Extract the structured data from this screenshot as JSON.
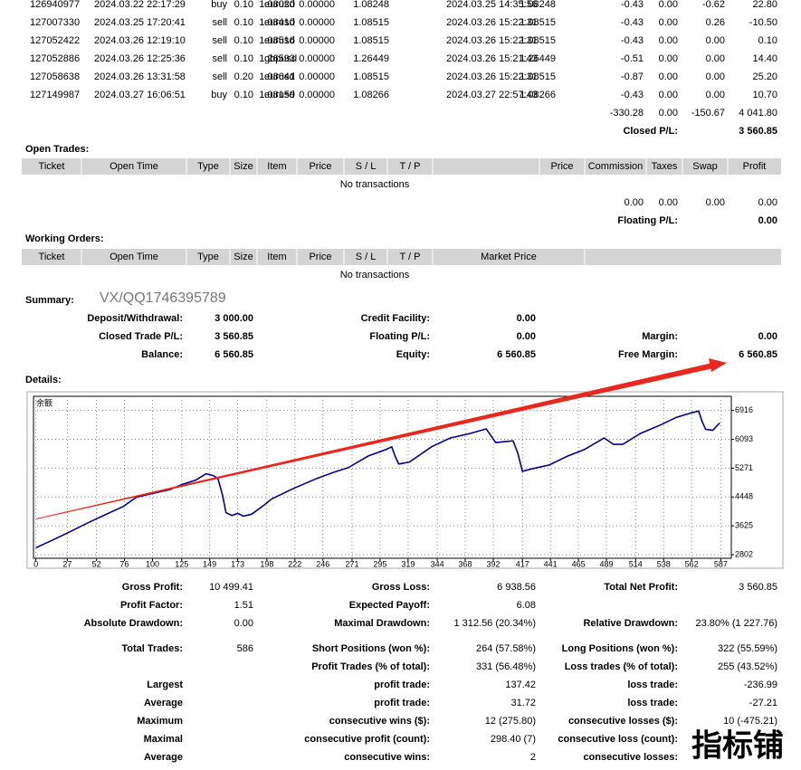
{
  "closed_trades": {
    "rows": [
      [
        "126940977",
        "2024.03.22 22:17:29",
        "buy",
        "0.10",
        "eurusd",
        "1.08020",
        "0.00000",
        "1.08248",
        "2024.03.25 14:35:56",
        "1.08248",
        "-0.43",
        "0.00",
        "-0.62",
        "22.80"
      ],
      [
        "127007330",
        "2024.03.25 17:20:41",
        "sell",
        "0.10",
        "eurusd",
        "1.08410",
        "0.00000",
        "1.08515",
        "2024.03.26 15:22:31",
        "1.08515",
        "-0.43",
        "0.00",
        "0.26",
        "-10.50"
      ],
      [
        "127052422",
        "2024.03.26 12:19:10",
        "sell",
        "0.10",
        "eurusd",
        "1.08516",
        "0.00000",
        "1.08515",
        "2024.03.26 15:22:31",
        "1.08515",
        "-0.43",
        "0.00",
        "0.00",
        "0.10"
      ],
      [
        "127052886",
        "2024.03.26 12:25:36",
        "sell",
        "0.10",
        "gbpusd",
        "1.26593",
        "0.00000",
        "1.26449",
        "2024.03.26 15:21:43",
        "1.26449",
        "-0.51",
        "0.00",
        "0.00",
        "14.40"
      ],
      [
        "127058638",
        "2024.03.26 13:31:58",
        "sell",
        "0.20",
        "eurusd",
        "1.08641",
        "0.00000",
        "1.08515",
        "2024.03.26 15:22:31",
        "1.08515",
        "-0.87",
        "0.00",
        "0.00",
        "25.20"
      ],
      [
        "127149987",
        "2024.03.27 16:06:51",
        "buy",
        "0.10",
        "eurusd",
        "1.08159",
        "0.00000",
        "1.08266",
        "2024.03.27 22:57:43",
        "1.08266",
        "-0.43",
        "0.00",
        "0.00",
        "10.70"
      ]
    ],
    "totals": [
      "-330.28",
      "0.00",
      "-150.67",
      "4 041.80"
    ],
    "closed_pl_label": "Closed P/L:",
    "closed_pl": "3 560.85"
  },
  "open_trades": {
    "title": "Open Trades:",
    "columns": [
      "Ticket",
      "Open Time",
      "Type",
      "Size",
      "Item",
      "Price",
      "S / L",
      "T / P",
      "Price",
      "Commission",
      "Taxes",
      "Swap",
      "Profit"
    ],
    "empty": "No transactions",
    "totals": [
      "0.00",
      "0.00",
      "0.00",
      "0.00"
    ],
    "floating_pl_label": "Floating P/L:",
    "floating_pl": "0.00"
  },
  "working_orders": {
    "title": "Working Orders:",
    "columns": [
      "Ticket",
      "Open Time",
      "Type",
      "Size",
      "Item",
      "Price",
      "S / L",
      "T / P",
      "Market Price"
    ],
    "empty": "No transactions"
  },
  "summary": {
    "title": "Summary:",
    "watermark": "VX/QQ1746395789",
    "rows": [
      [
        "Deposit/Withdrawal:",
        "3 000.00",
        "Credit Facility:",
        "0.00",
        null,
        null
      ],
      [
        "Closed Trade P/L:",
        "3 560.85",
        "Floating P/L:",
        "0.00",
        "Margin:",
        "0.00"
      ],
      [
        "Balance:",
        "6 560.85",
        "Equity:",
        "6 560.85",
        "Free Margin:",
        "6 560.85"
      ]
    ]
  },
  "details_title": "Details:",
  "chart_data": {
    "type": "line",
    "title": "余额",
    "color": "#00008b",
    "x": [
      0,
      8,
      17,
      30,
      47,
      60,
      75,
      86,
      100,
      115,
      125,
      137,
      146,
      152,
      156,
      160,
      163,
      168,
      173,
      178,
      185,
      195,
      202,
      220,
      241,
      255,
      268,
      285,
      300,
      305,
      308,
      311,
      320,
      339,
      355,
      372,
      386,
      390,
      394,
      409,
      413,
      417,
      425,
      440,
      456,
      470,
      487,
      495,
      503,
      518,
      535,
      549,
      562,
      568,
      571,
      574,
      580,
      583,
      586
    ],
    "values": [
      3000,
      3120,
      3260,
      3470,
      3750,
      3950,
      4180,
      4440,
      4550,
      4660,
      4800,
      4930,
      5110,
      5060,
      4980,
      4500,
      4000,
      3920,
      3980,
      3900,
      3960,
      4200,
      4390,
      4680,
      4980,
      5150,
      5290,
      5620,
      5800,
      5880,
      5600,
      5390,
      5440,
      5880,
      6130,
      6260,
      6390,
      6200,
      6000,
      6050,
      5700,
      5180,
      5250,
      5360,
      5620,
      5800,
      6130,
      5950,
      5950,
      6260,
      6500,
      6720,
      6850,
      6900,
      6600,
      6380,
      6350,
      6450,
      6560.85
    ],
    "xlim": [
      -2,
      596
    ],
    "ylim": [
      2700,
      7320
    ],
    "xticks": [
      0,
      27,
      52,
      76,
      100,
      125,
      149,
      173,
      198,
      222,
      246,
      271,
      295,
      319,
      344,
      368,
      392,
      417,
      441,
      465,
      489,
      514,
      538,
      562,
      587
    ],
    "yticks": [
      2802,
      3625,
      4448,
      5271,
      6093,
      6916
    ],
    "grid": true
  },
  "stats": {
    "rows": [
      [
        "Gross Profit:",
        "10 499.41",
        "Gross Loss:",
        "6 938.56",
        "Total Net Profit:",
        "3 560.85"
      ],
      [
        "Profit Factor:",
        "1.51",
        "Expected Payoff:",
        "6.08",
        null,
        null
      ],
      [
        "Absolute Drawdown:",
        "0.00",
        "Maximal Drawdown:",
        "1 312.56 (20.34%)",
        "Relative Drawdown:",
        "23.80% (1 227.76)"
      ],
      [
        "Total Trades:",
        "586",
        "Short Positions (won %):",
        "264 (57.58%)",
        "Long Positions (won %):",
        "322 (55.59%)"
      ],
      [
        null,
        null,
        "Profit Trades (% of total):",
        "331 (56.48%)",
        "Loss trades (% of total):",
        "255 (43.52%)"
      ],
      [
        "Largest",
        null,
        "profit trade:",
        "137.42",
        "loss trade:",
        "-236.99"
      ],
      [
        "Average",
        null,
        "profit trade:",
        "31.72",
        "loss trade:",
        "-27.21"
      ],
      [
        "Maximum",
        null,
        "consecutive wins ($):",
        "12 (275.80)",
        "consecutive losses ($):",
        "10 (-475.21)"
      ],
      [
        "Maximal",
        null,
        "consecutive profit (count):",
        "298.40 (7)",
        "consecutive loss (count):",
        null
      ],
      [
        "Average",
        null,
        "consecutive wins:",
        "2",
        "consecutive losses:",
        null
      ]
    ]
  },
  "watermark": "指标铺"
}
